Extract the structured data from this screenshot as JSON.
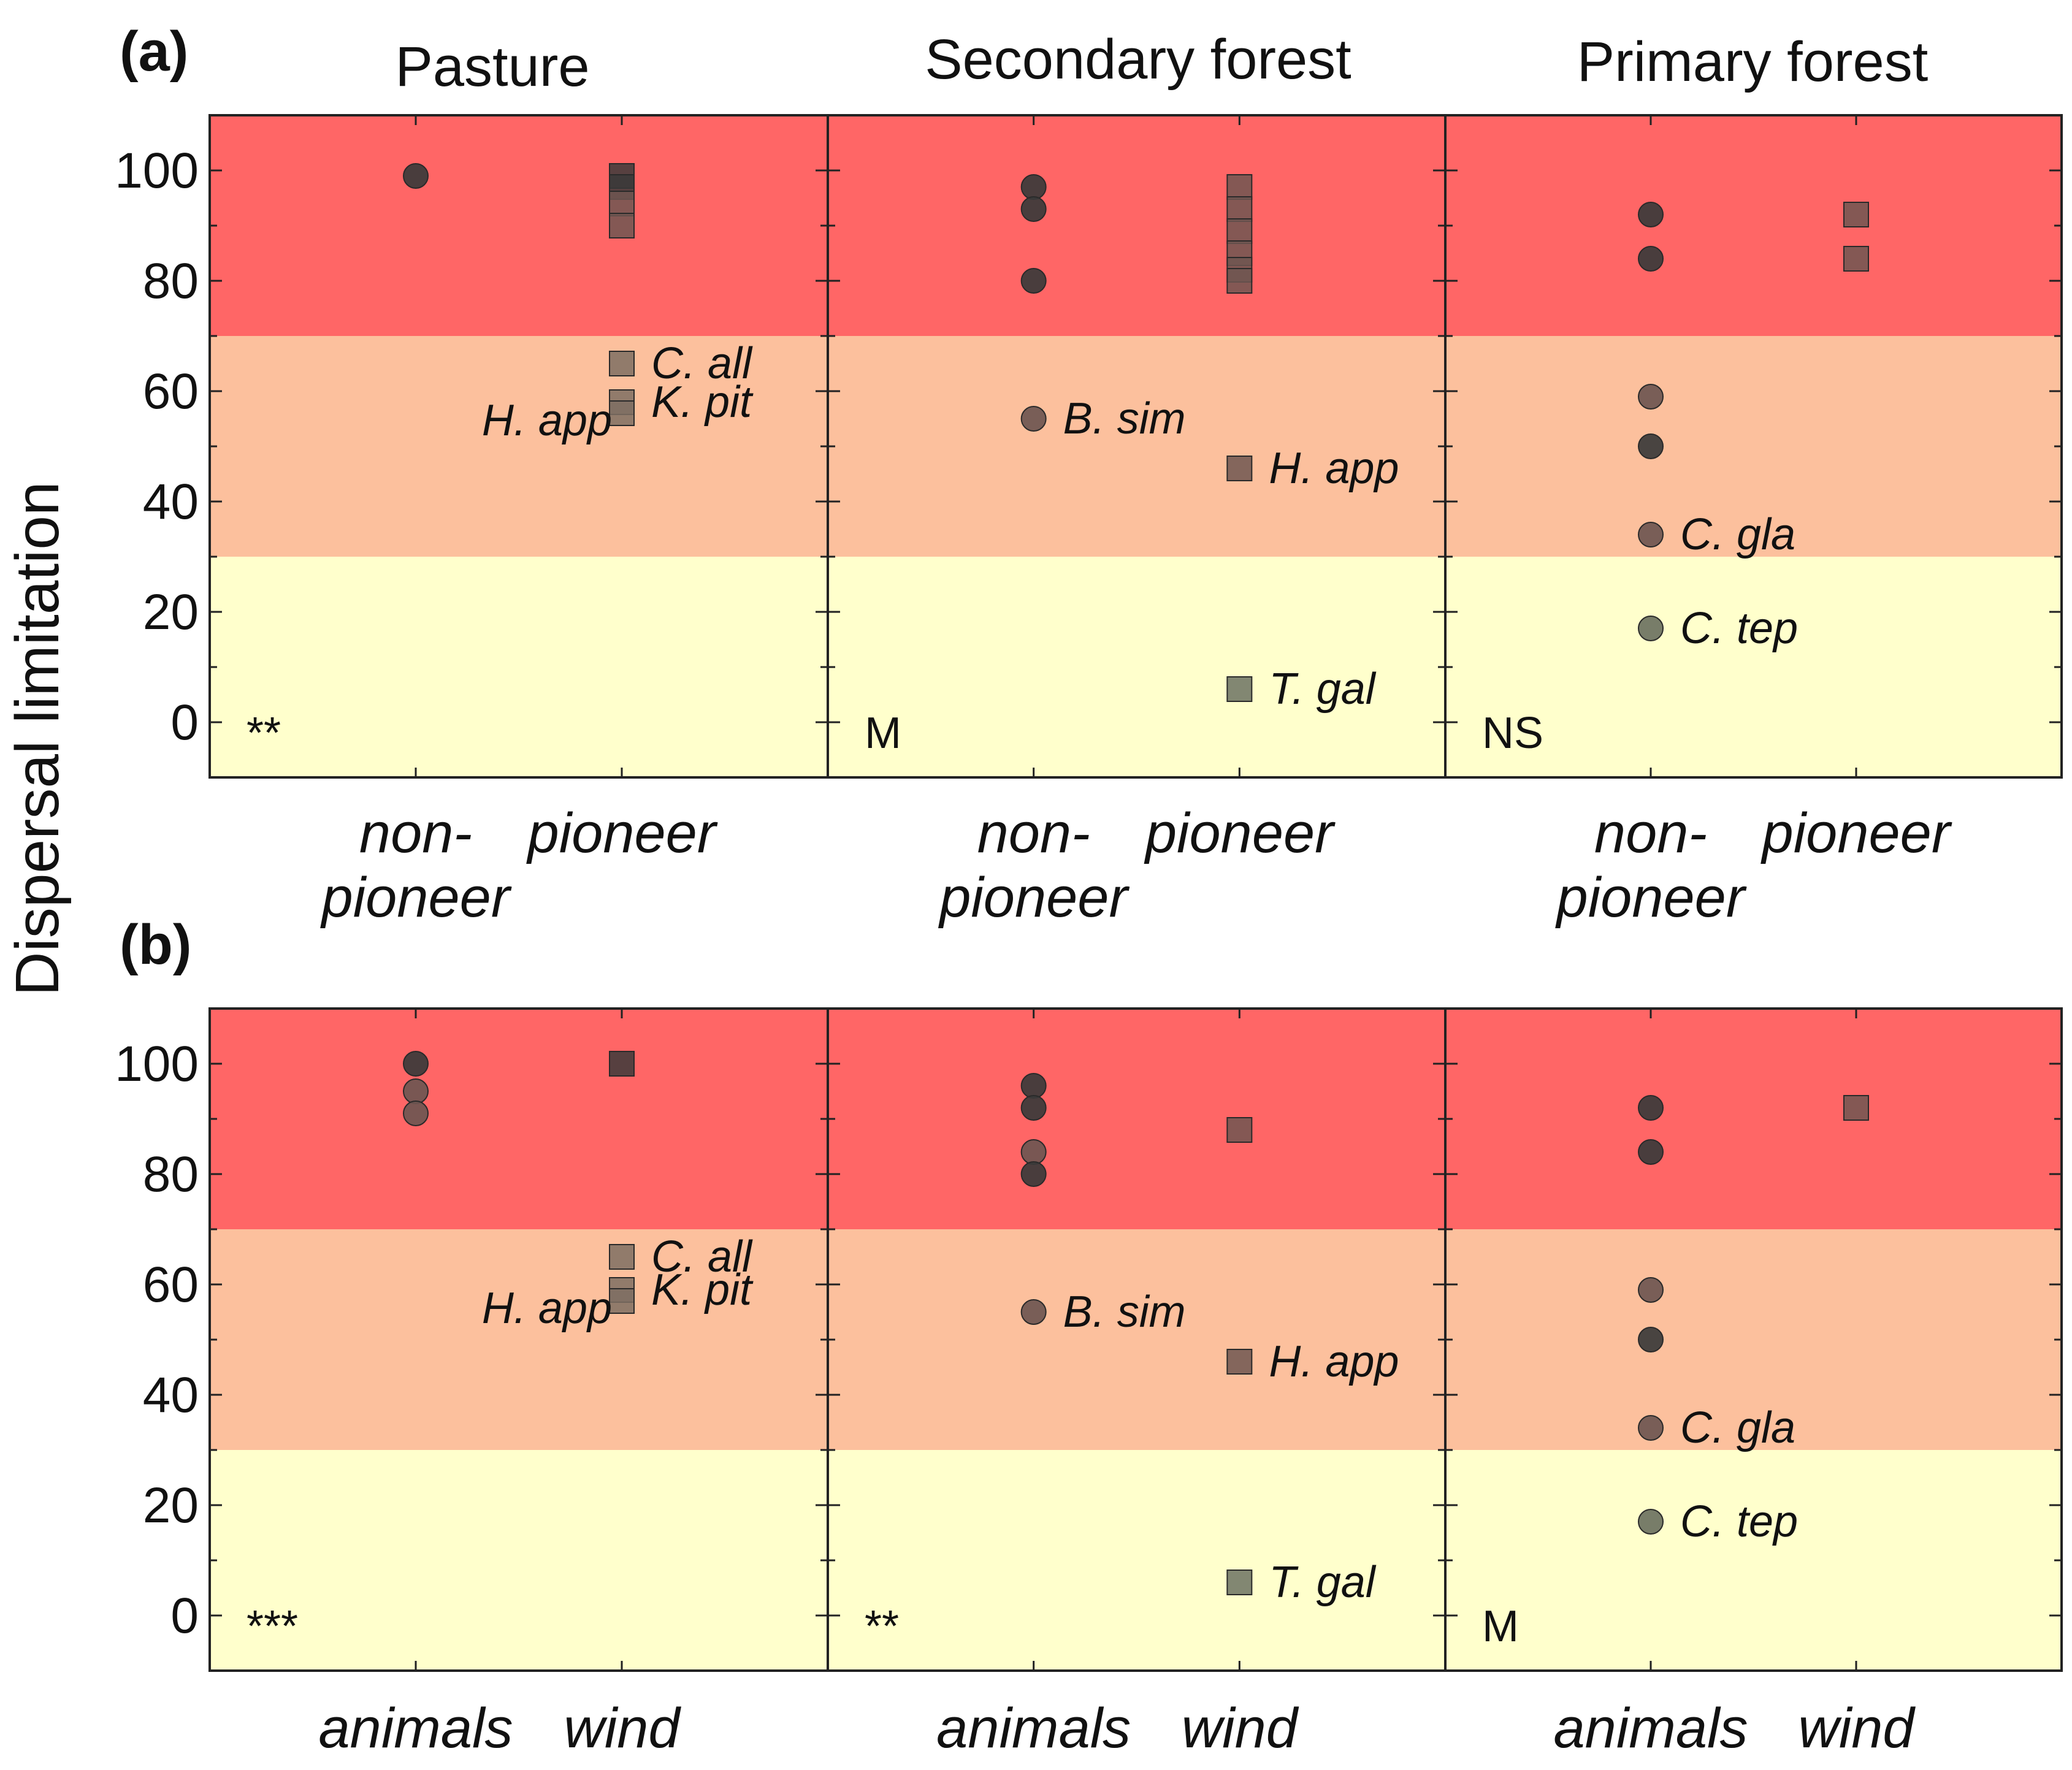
{
  "figure": {
    "ylabel": "Dispersal limitation",
    "zone_colors": {
      "high": "#ff6666",
      "medium": "#fcc09d",
      "low": "#ffffcc"
    },
    "zone_bounds": [
      30,
      70
    ],
    "marker_colors": {
      "dark": "#3a3a3a",
      "mid": "#6e5651",
      "light": "#7e6f63",
      "grey": "#6c7261"
    }
  },
  "column_titles": [
    "Pasture",
    "Secondary forest",
    "Primary forest"
  ],
  "rows": [
    {
      "label": "(a)",
      "categories": [
        [
          "non-",
          "pioneer"
        ],
        [
          "pioneer"
        ]
      ]
    },
    {
      "label": "(b)",
      "categories": [
        [
          "animals"
        ],
        [
          "wind"
        ]
      ]
    }
  ],
  "chart_data": [
    {
      "type": "scatter",
      "title": "Pasture",
      "row": "(a)",
      "ylabel": "Dispersal limitation",
      "categories": [
        "non-pioneer",
        "pioneer"
      ],
      "ylim": [
        -10,
        110
      ],
      "yticks": [
        "0",
        "20",
        "40",
        "60",
        "80",
        "100"
      ],
      "significance": "**",
      "series": [
        {
          "category": "non-pioneer",
          "marker": "circle",
          "points": [
            {
              "y": 99,
              "tone": "dark"
            }
          ]
        },
        {
          "category": "pioneer",
          "marker": "square",
          "points": [
            {
              "y": 99,
              "tone": "dark"
            },
            {
              "y": 97,
              "tone": "dark"
            },
            {
              "y": 94,
              "tone": "mid"
            },
            {
              "y": 90,
              "tone": "mid"
            },
            {
              "y": 65,
              "tone": "light",
              "label": "C. all"
            },
            {
              "y": 58,
              "tone": "light",
              "label": "K. pit"
            },
            {
              "y": 56,
              "tone": "light",
              "label": "H. app",
              "label_side": "left"
            }
          ]
        }
      ]
    },
    {
      "type": "scatter",
      "title": "Secondary forest",
      "row": "(a)",
      "categories": [
        "non-pioneer",
        "pioneer"
      ],
      "ylim": [
        -10,
        110
      ],
      "significance": "M",
      "series": [
        {
          "category": "non-pioneer",
          "marker": "circle",
          "points": [
            {
              "y": 97,
              "tone": "dark"
            },
            {
              "y": 93,
              "tone": "dark"
            },
            {
              "y": 80,
              "tone": "dark"
            },
            {
              "y": 55,
              "tone": "mid",
              "label": "B. sim"
            }
          ]
        },
        {
          "category": "pioneer",
          "marker": "square",
          "points": [
            {
              "y": 97,
              "tone": "mid"
            },
            {
              "y": 93,
              "tone": "mid"
            },
            {
              "y": 89,
              "tone": "mid"
            },
            {
              "y": 85,
              "tone": "mid"
            },
            {
              "y": 82,
              "tone": "mid"
            },
            {
              "y": 80,
              "tone": "mid"
            },
            {
              "y": 46,
              "tone": "mid",
              "label": "H. app"
            },
            {
              "y": 6,
              "tone": "grey",
              "label": "T. gal"
            }
          ]
        }
      ]
    },
    {
      "type": "scatter",
      "title": "Primary forest",
      "row": "(a)",
      "categories": [
        "non-pioneer",
        "pioneer"
      ],
      "ylim": [
        -10,
        110
      ],
      "significance": "NS",
      "series": [
        {
          "category": "non-pioneer",
          "marker": "circle",
          "points": [
            {
              "y": 92,
              "tone": "dark"
            },
            {
              "y": 84,
              "tone": "dark"
            },
            {
              "y": 59,
              "tone": "mid"
            },
            {
              "y": 50,
              "tone": "dark"
            },
            {
              "y": 34,
              "tone": "mid",
              "label": "C. gla"
            },
            {
              "y": 17,
              "tone": "grey",
              "label": "C. tep"
            }
          ]
        },
        {
          "category": "pioneer",
          "marker": "square",
          "points": [
            {
              "y": 92,
              "tone": "mid"
            },
            {
              "y": 84,
              "tone": "mid"
            }
          ]
        }
      ]
    },
    {
      "type": "scatter",
      "title": "Pasture",
      "row": "(b)",
      "ylabel": "Dispersal limitation",
      "categories": [
        "animals",
        "wind"
      ],
      "ylim": [
        -10,
        110
      ],
      "yticks": [
        "0",
        "20",
        "40",
        "60",
        "80",
        "100"
      ],
      "significance": "***",
      "series": [
        {
          "category": "animals",
          "marker": "circle",
          "points": [
            {
              "y": 100,
              "tone": "dark"
            },
            {
              "y": 95,
              "tone": "mid"
            },
            {
              "y": 91,
              "tone": "mid"
            }
          ]
        },
        {
          "category": "wind",
          "marker": "square",
          "points": [
            {
              "y": 100,
              "tone": "dark"
            },
            {
              "y": 65,
              "tone": "light",
              "label": "C. all"
            },
            {
              "y": 59,
              "tone": "light",
              "label": "K. pit"
            },
            {
              "y": 57,
              "tone": "light",
              "label": "H. app",
              "label_side": "left"
            }
          ]
        }
      ]
    },
    {
      "type": "scatter",
      "title": "Secondary forest",
      "row": "(b)",
      "categories": [
        "animals",
        "wind"
      ],
      "ylim": [
        -10,
        110
      ],
      "significance": "**",
      "series": [
        {
          "category": "animals",
          "marker": "circle",
          "points": [
            {
              "y": 96,
              "tone": "dark"
            },
            {
              "y": 92,
              "tone": "dark"
            },
            {
              "y": 84,
              "tone": "mid"
            },
            {
              "y": 80,
              "tone": "dark"
            },
            {
              "y": 55,
              "tone": "mid",
              "label": "B. sim"
            }
          ]
        },
        {
          "category": "wind",
          "marker": "square",
          "points": [
            {
              "y": 88,
              "tone": "mid"
            },
            {
              "y": 46,
              "tone": "mid",
              "label": "H. app"
            },
            {
              "y": 6,
              "tone": "grey",
              "label": "T. gal"
            }
          ]
        }
      ]
    },
    {
      "type": "scatter",
      "title": "Primary forest",
      "row": "(b)",
      "categories": [
        "animals",
        "wind"
      ],
      "ylim": [
        -10,
        110
      ],
      "significance": "M",
      "series": [
        {
          "category": "animals",
          "marker": "circle",
          "points": [
            {
              "y": 92,
              "tone": "dark"
            },
            {
              "y": 84,
              "tone": "dark"
            },
            {
              "y": 59,
              "tone": "mid"
            },
            {
              "y": 50,
              "tone": "dark"
            },
            {
              "y": 34,
              "tone": "mid",
              "label": "C. gla"
            },
            {
              "y": 17,
              "tone": "grey",
              "label": "C. tep"
            }
          ]
        },
        {
          "category": "wind",
          "marker": "square",
          "points": [
            {
              "y": 92,
              "tone": "mid"
            }
          ]
        }
      ]
    }
  ]
}
